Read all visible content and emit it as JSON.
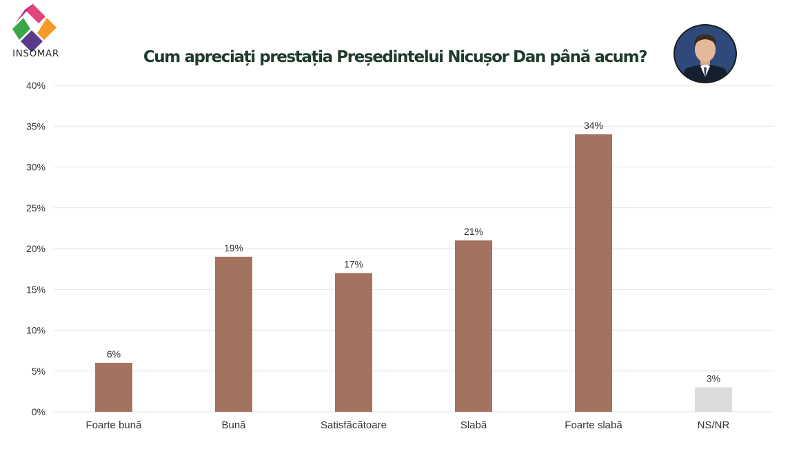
{
  "header": {
    "title": "Cum apreciați prestația Președintelui Nicușor Dan până acum?",
    "logo_text": "INSOMAR"
  },
  "colors": {
    "bar": "#a47360",
    "bar_muted": "#dcdcdc",
    "grid": "#e3e3e3",
    "text": "#333333",
    "title": "#1f3b2c"
  },
  "chart_data": {
    "type": "bar",
    "title": "Cum apreciați prestația Președintelui Nicușor Dan până acum?",
    "categories": [
      "Foarte bună",
      "Bună",
      "Satisfăcătoare",
      "Slabă",
      "Foarte slabă",
      "NS/NR"
    ],
    "values": [
      6,
      19,
      17,
      21,
      34,
      3
    ],
    "value_labels": [
      "6%",
      "19%",
      "17%",
      "21%",
      "34%",
      "3%"
    ],
    "bar_color_keys": [
      "bar",
      "bar",
      "bar",
      "bar",
      "bar",
      "bar_muted"
    ],
    "ylim": [
      0,
      40
    ],
    "yticks": [
      0,
      5,
      10,
      15,
      20,
      25,
      30,
      35,
      40
    ],
    "ytick_labels": [
      "0%",
      "5%",
      "10%",
      "15%",
      "20%",
      "25%",
      "30%",
      "35%",
      "40%"
    ],
    "xlabel": "",
    "ylabel": "",
    "grid": true,
    "legend": "none"
  }
}
